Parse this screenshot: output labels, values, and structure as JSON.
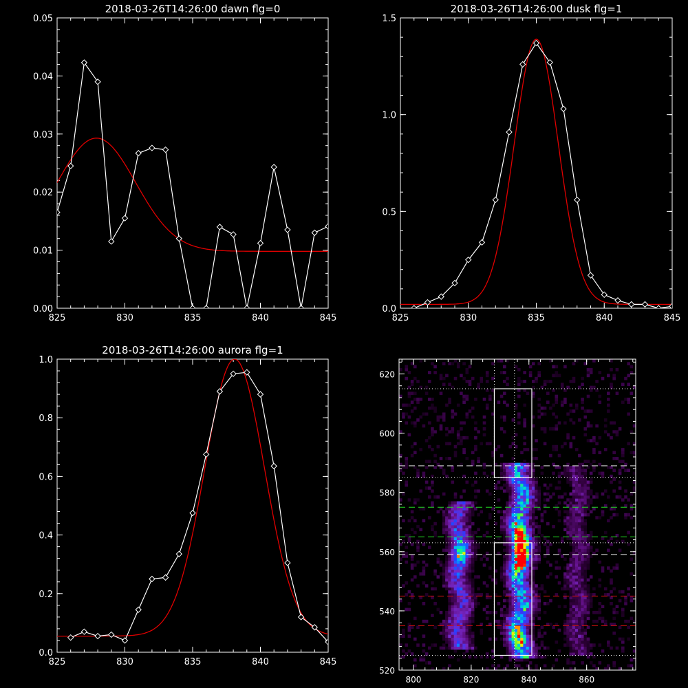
{
  "colors": {
    "background": "#000000",
    "foreground": "#ffffff",
    "fit": "#e00000",
    "green_line": "#22dd22",
    "red_line": "#cc1111"
  },
  "chart_data": [
    {
      "type": "line",
      "title": "2018-03-26T14:26:00 dawn flg=0",
      "xlim": [
        825,
        845
      ],
      "ylim": [
        0,
        0.05
      ],
      "xticks": [
        "825",
        "830",
        "835",
        "840",
        "845"
      ],
      "yticks": [
        "0.00",
        "0.01",
        "0.02",
        "0.03",
        "0.04",
        "0.05"
      ],
      "series": [
        {
          "role": "data",
          "marker": "diamond",
          "x": [
            825,
            826,
            827,
            828,
            829,
            830,
            831,
            832,
            833,
            834,
            835,
            836,
            837,
            838,
            839,
            840,
            841,
            842,
            843,
            844,
            845
          ],
          "y": [
            0.0165,
            0.0245,
            0.0423,
            0.039,
            0.0115,
            0.0155,
            0.0267,
            0.0276,
            0.0273,
            0.012,
            0.0,
            0.0,
            0.014,
            0.0127,
            0.0,
            0.0112,
            0.0243,
            0.0135,
            0.0,
            0.013,
            0.0141
          ]
        },
        {
          "role": "fit",
          "gaussian": {
            "amplitude": 0.0195,
            "center": 827.9,
            "sigma": 2.9,
            "offset": 0.0098
          }
        }
      ]
    },
    {
      "type": "line",
      "title": "2018-03-26T14:26:00 dusk flg=1",
      "xlim": [
        825,
        845
      ],
      "ylim": [
        0,
        1.5
      ],
      "xticks": [
        "825",
        "830",
        "835",
        "840",
        "845"
      ],
      "yticks": [
        "0.0",
        "0.5",
        "1.0",
        "1.5"
      ],
      "series": [
        {
          "role": "data",
          "marker": "diamond",
          "x": [
            826,
            827,
            828,
            829,
            830,
            831,
            832,
            833,
            834,
            835,
            836,
            837,
            838,
            839,
            840,
            841,
            842,
            843,
            844,
            845
          ],
          "y": [
            0.0,
            0.03,
            0.06,
            0.13,
            0.25,
            0.34,
            0.56,
            0.91,
            1.26,
            1.37,
            1.27,
            1.03,
            0.56,
            0.17,
            0.07,
            0.04,
            0.02,
            0.02,
            0.0,
            0.01
          ]
        },
        {
          "role": "fit",
          "gaussian": {
            "amplitude": 1.37,
            "center": 835.0,
            "sigma": 1.62,
            "offset": 0.02
          }
        }
      ]
    },
    {
      "type": "line",
      "title": "2018-03-26T14:26:00 aurora flg=1",
      "xlim": [
        825,
        845
      ],
      "ylim": [
        0,
        1.0
      ],
      "xticks": [
        "825",
        "830",
        "835",
        "840",
        "845"
      ],
      "yticks": [
        "0.0",
        "0.2",
        "0.4",
        "0.6",
        "0.8",
        "1.0"
      ],
      "series": [
        {
          "role": "data",
          "marker": "diamond",
          "x": [
            826,
            827,
            828,
            829,
            830,
            831,
            832,
            833,
            834,
            835,
            836,
            837,
            838,
            839,
            840,
            841,
            842,
            843,
            844,
            845
          ],
          "y": [
            0.05,
            0.07,
            0.055,
            0.06,
            0.04,
            0.145,
            0.25,
            0.255,
            0.335,
            0.475,
            0.675,
            0.89,
            0.95,
            0.955,
            0.88,
            0.635,
            0.305,
            0.12,
            0.085,
            0.035
          ]
        },
        {
          "role": "fit",
          "gaussian": {
            "amplitude": 0.945,
            "center": 838.1,
            "sigma": 2.2,
            "offset": 0.055
          }
        }
      ]
    },
    {
      "type": "heatmap",
      "title": "",
      "xlim": [
        795,
        877
      ],
      "ylim": [
        520,
        625
      ],
      "xticks": [
        "800",
        "820",
        "840",
        "860"
      ],
      "yticks": [
        "520",
        "540",
        "560",
        "580",
        "600",
        "620"
      ],
      "emission_columns": [
        {
          "center": 816,
          "width": 2.6,
          "y_range": [
            527,
            577
          ],
          "peak": 0.65
        },
        {
          "center": 837,
          "width": 2.7,
          "y_range": [
            524,
            590
          ],
          "peak": 1.0
        },
        {
          "center": 857,
          "width": 2.4,
          "y_range": [
            525,
            589
          ],
          "peak": 0.3
        }
      ],
      "hot_spots": [
        {
          "x": 837,
          "y": 558,
          "value": 1.0
        },
        {
          "x": 816,
          "y": 560,
          "value": 0.55
        },
        {
          "x": 837,
          "y": 565,
          "value": 0.8
        },
        {
          "x": 836,
          "y": 531,
          "value": 0.55
        }
      ],
      "boxes": [
        {
          "x": [
            828,
            841
          ],
          "y": [
            525,
            563
          ]
        },
        {
          "x": [
            828,
            841
          ],
          "y": [
            585,
            615
          ]
        }
      ],
      "vertical_dotted_lines": [
        828,
        835
      ],
      "horizontal_lines": [
        {
          "y": 615,
          "style": "dotted",
          "color": "white"
        },
        {
          "y": 589,
          "style": "dashed",
          "color": "white"
        },
        {
          "y": 585,
          "style": "dotted",
          "color": "white"
        },
        {
          "y": 575,
          "style": "dashed",
          "color": "green"
        },
        {
          "y": 565,
          "style": "dashed",
          "color": "green"
        },
        {
          "y": 563,
          "style": "dotted",
          "color": "white"
        },
        {
          "y": 559,
          "style": "dashed",
          "color": "white"
        },
        {
          "y": 545,
          "style": "dashed",
          "color": "red"
        },
        {
          "y": 535,
          "style": "dashed",
          "color": "red"
        },
        {
          "y": 525,
          "style": "dotted",
          "color": "white"
        }
      ]
    }
  ]
}
